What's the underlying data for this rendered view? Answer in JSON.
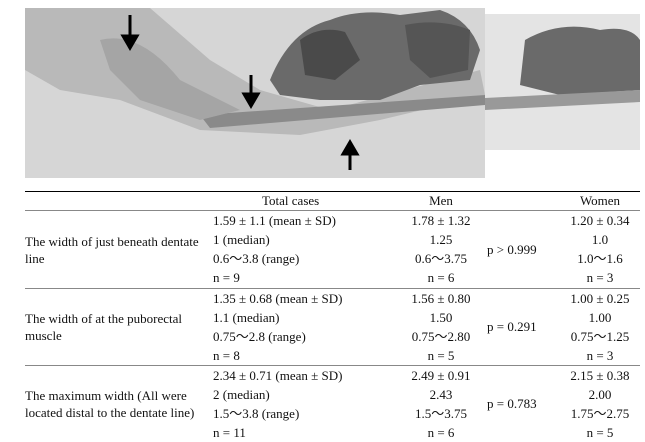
{
  "table": {
    "header": [
      "Total cases",
      "Men",
      "Women"
    ],
    "rows": [
      {
        "label": "The width of just beneath dentate line",
        "total": [
          "1.59 ± 1.1 (mean ± SD)",
          "1 (median)",
          "0.6～3.8 (range)",
          "n = 9"
        ],
        "men": [
          "1.78 ± 1.32",
          "1.25",
          "0.6～3.75",
          "n = 6"
        ],
        "p": "p > 0.999",
        "women": [
          "1.20 ± 0.34",
          "1.0",
          "1.0～1.6",
          "n = 3"
        ]
      },
      {
        "label": "The width of at the puborectal muscle",
        "total": [
          "1.35 ± 0.68 (mean ± SD)",
          "1.1 (median)",
          "0.75～2.8 (range)",
          "n = 8"
        ],
        "men": [
          "1.56 ± 0.80",
          "1.50",
          "0.75～2.80",
          "n = 5"
        ],
        "p": "p = 0.291",
        "women": [
          "1.00 ± 0.25",
          "1.00",
          "0.75～1.25",
          "n = 3"
        ]
      },
      {
        "label": "The maximum width (All were located distal to the dentate line)",
        "total": [
          "2.34 ± 0.71 (mean ± SD)",
          "2 (median)",
          "1.5～3.8 (range)",
          "n = 11"
        ],
        "men": [
          "2.49 ± 0.91",
          "2.43",
          "1.5～3.75",
          "n = 6"
        ],
        "p": "p = 0.783",
        "women": [
          "2.15 ± 0.38",
          "2.00",
          "1.75～2.75",
          "n = 5"
        ]
      }
    ]
  }
}
